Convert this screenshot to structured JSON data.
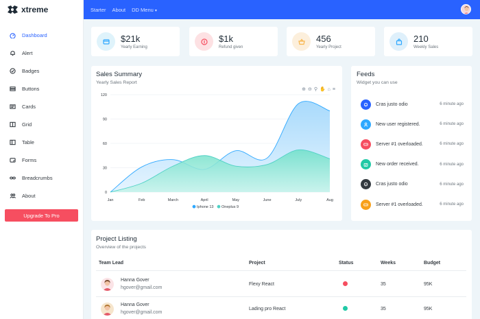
{
  "brand": {
    "name": "xtreme"
  },
  "colors": {
    "primary": "#2962ff",
    "danger": "#f64e60",
    "series1": "#2ea8ff",
    "series2": "#4fd1c5"
  },
  "sidebar": {
    "items": [
      {
        "label": "Dashboard",
        "icon": "speedometer-icon",
        "active": true
      },
      {
        "label": "Alert",
        "icon": "bell-icon"
      },
      {
        "label": "Badges",
        "icon": "patch-check-icon"
      },
      {
        "label": "Buttons",
        "icon": "hdd-stack-icon"
      },
      {
        "label": "Cards",
        "icon": "card-text-icon"
      },
      {
        "label": "Grid",
        "icon": "columns-icon"
      },
      {
        "label": "Table",
        "icon": "layout-split-icon"
      },
      {
        "label": "Forms",
        "icon": "textarea-resize-icon"
      },
      {
        "label": "Breadcrumbs",
        "icon": "link-icon"
      },
      {
        "label": "About",
        "icon": "people-icon"
      }
    ],
    "upgrade_label": "Upgrade To Pro"
  },
  "topbar": {
    "links": [
      "Starter",
      "About"
    ],
    "dropdown": "DD Menu"
  },
  "stats": [
    {
      "value": "$21k",
      "label": "Yearly Earning",
      "icon": "wallet-icon",
      "color": "#2ea8ff",
      "bg": "#dff3fb"
    },
    {
      "value": "$1k",
      "label": "Refund given",
      "icon": "coin-icon",
      "color": "#f64e60",
      "bg": "#fde1e3"
    },
    {
      "value": "456",
      "label": "Yearly Project",
      "icon": "basket-icon",
      "color": "#f8b54b",
      "bg": "#fcefdc"
    },
    {
      "value": "210",
      "label": "Weekly Sales",
      "icon": "bag-icon",
      "color": "#2ea8ff",
      "bg": "#dff0fb"
    }
  ],
  "sales": {
    "title": "Sales Summary",
    "subtitle": "Yearly Sales Report"
  },
  "chart_data": {
    "type": "area",
    "categories": [
      "Jan",
      "Feb",
      "March",
      "April",
      "May",
      "June",
      "July",
      "Aug"
    ],
    "series": [
      {
        "name": "Iphone 13",
        "values": [
          0,
          31,
          40,
          28,
          51,
          42,
          109,
          100
        ]
      },
      {
        "name": "Oneplus 9",
        "values": [
          0,
          11,
          32,
          45,
          32,
          34,
          52,
          41
        ]
      }
    ],
    "y_ticks": [
      "0",
      "30",
      "60",
      "90",
      "120"
    ],
    "ylim": [
      0,
      120
    ],
    "legend": "bottom-center",
    "grid": true
  },
  "feeds": {
    "title": "Feeds",
    "subtitle": "Widget you can use",
    "items": [
      {
        "text": "Cras justo odio",
        "time": "6 minute ago",
        "color": "#2962ff",
        "icon": "bell-icon"
      },
      {
        "text": "New user registered.",
        "time": "6 minute ago",
        "color": "#2ea8ff",
        "icon": "person-icon"
      },
      {
        "text": "Server #1 overloaded.",
        "time": "6 minute ago",
        "color": "#f64e60",
        "icon": "hdd-icon"
      },
      {
        "text": "New order received.",
        "time": "6 minute ago",
        "color": "#20c9a6",
        "icon": "bag-check-icon"
      },
      {
        "text": "Cras justo odio",
        "time": "6 minute ago",
        "color": "#343a40",
        "icon": "bell-icon"
      },
      {
        "text": "Server #1 overloaded.",
        "time": "6 minute ago",
        "color": "#f8a01a",
        "icon": "hdd-icon"
      }
    ]
  },
  "projects": {
    "title": "Project Listing",
    "subtitle": "Overview of the projects",
    "columns": [
      "Team Lead",
      "Project",
      "Status",
      "Weeks",
      "Budget"
    ],
    "rows": [
      {
        "name": "Hanna Gover",
        "email": "hgover@gmail.com",
        "project": "Flexy React",
        "status_color": "#f64e60",
        "weeks": "35",
        "budget": "95K"
      },
      {
        "name": "Hanna Gover",
        "email": "hgover@gmail.com",
        "project": "Lading pro React",
        "status_color": "#20c9a6",
        "weeks": "35",
        "budget": "95K"
      }
    ]
  }
}
